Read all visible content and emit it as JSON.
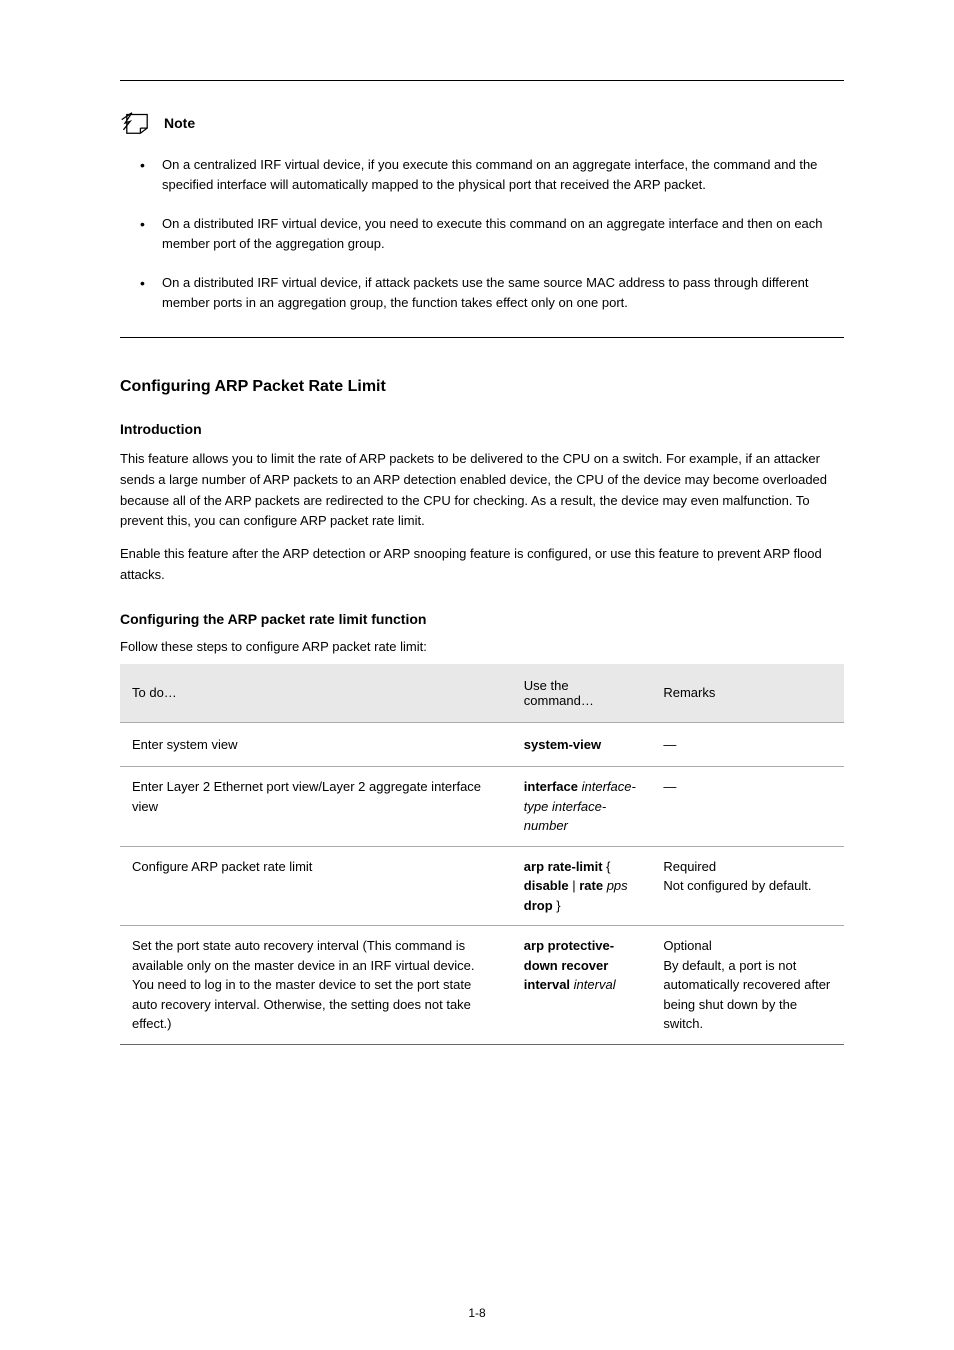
{
  "note": {
    "label": "Note",
    "bullets": [
      "On a centralized IRF virtual device, if you execute this command on an aggregate interface, the command and the specified interface will automatically mapped to the physical port that received the ARP packet.",
      "On a distributed IRF virtual device, you need to execute this command on an aggregate interface and then on each member port of the aggregation group.",
      "On a distributed IRF virtual device, if attack packets use the same source MAC address to pass through different member ports in an aggregation group, the function takes effect only on one port."
    ]
  },
  "section1": {
    "heading": "Configuring ARP Packet Rate Limit",
    "intro_heading": "Introduction",
    "intro_text": "This feature allows you to limit the rate of ARP packets to be delivered to the CPU on a switch. For example, if an attacker sends a large number of ARP packets to an ARP detection enabled device, the CPU of the device may become overloaded because all of the ARP packets are redirected to the CPU for checking. As a result, the device may even malfunction. To prevent this, you can configure ARP packet rate limit.",
    "when_text": "Enable this feature after the ARP detection or ARP snooping feature is configured, or use this feature to prevent ARP flood attacks.",
    "config_heading": "Configuring the ARP packet rate limit function",
    "table_caption": "Follow these steps to configure ARP packet rate limit:"
  },
  "table": {
    "columns": [
      "To do…",
      "Use the command…",
      "Remarks"
    ],
    "rows": [
      [
        "Enter system view",
        "<b>system-view</b>",
        "—"
      ],
      [
        "Enter Layer 2 Ethernet port view/Layer 2 aggregate interface view",
        "<b>interface</b> <i>interface-type interface-number</i>",
        "—"
      ],
      [
        "Configure ARP packet rate limit",
        "<b>arp rate-limit</b> { <b>disable</b> | <b>rate</b> <i>pps</i> <b>drop</b> }",
        "Required\nNot configured by default."
      ],
      [
        "Set the port state auto recovery interval (This command is available only on the master device in an IRF virtual device. You need to log in to the master device to set the port state auto recovery interval. Otherwise, the setting does not take effect.)",
        "<b>arp protective-down recover interval</b> <i>interval</i>",
        "Optional\nBy default, a port is not automatically recovered after being shut down by the switch."
      ]
    ]
  },
  "page_number": "1-8"
}
